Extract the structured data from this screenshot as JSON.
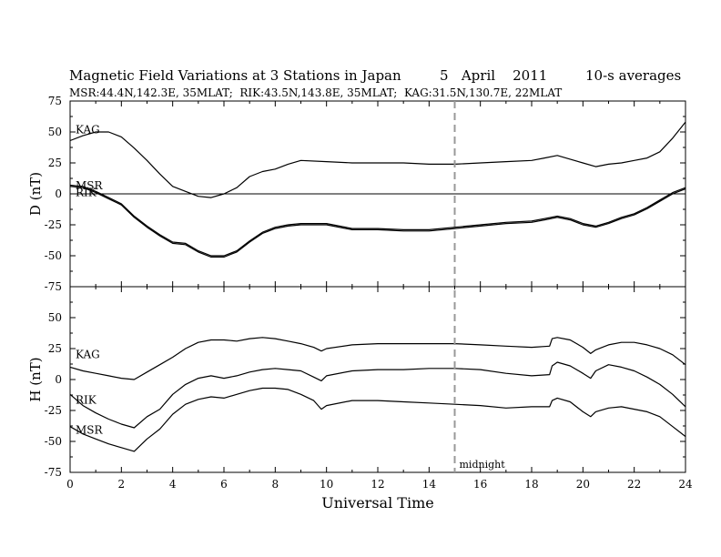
{
  "chart_data": {
    "type": "line",
    "title": "Magnetic Field Variations at 3 Stations in Japan",
    "date": "5   April    2011",
    "averaging": "10-s averages",
    "subtitle": "MSR:44.4N,142.3E, 35MLAT;  RIK:43.5N,143.8E, 35MLAT;  KAG:31.5N,130.7E, 22MLAT",
    "xlabel": "Universal Time",
    "xlim": [
      0,
      24
    ],
    "x_ticks": [
      0,
      2,
      4,
      6,
      8,
      10,
      12,
      14,
      16,
      18,
      20,
      22,
      24
    ],
    "midnight_marker": {
      "x": 15,
      "label": "midnight"
    },
    "panels": [
      {
        "name": "D",
        "ylabel": "D (nT)",
        "ylim": [
          -75,
          75
        ],
        "y_ticks": [
          75,
          50,
          25,
          0,
          -25,
          -50,
          -75
        ],
        "zero_line": true,
        "series": [
          {
            "name": "KAG",
            "x": [
              0,
              0.5,
              1,
              1.5,
              2,
              2.5,
              3,
              3.5,
              4,
              4.5,
              5,
              5.5,
              6,
              6.5,
              7,
              7.5,
              8,
              8.5,
              9,
              10,
              11,
              12,
              13,
              14,
              15,
              16,
              17,
              18,
              18.5,
              19,
              19.5,
              20,
              20.5,
              21,
              21.5,
              22,
              22.5,
              23,
              23.5,
              24
            ],
            "values": [
              43,
              47,
              50,
              50,
              46,
              37,
              27,
              16,
              6,
              2,
              -2,
              -3,
              0,
              5,
              14,
              18,
              20,
              24,
              27,
              26,
              25,
              25,
              25,
              24,
              24,
              25,
              26,
              27,
              29,
              31,
              28,
              25,
              22,
              24,
              25,
              27,
              29,
              34,
              45,
              58
            ]
          },
          {
            "name": "MSR",
            "x": [
              0,
              0.5,
              1,
              1.5,
              2,
              2.5,
              3,
              3.5,
              4,
              4.5,
              5,
              5.5,
              6,
              6.5,
              7,
              7.5,
              8,
              8.5,
              9,
              10,
              11,
              12,
              13,
              14,
              15,
              16,
              17,
              18,
              18.5,
              19,
              19.5,
              20,
              20.5,
              21,
              21.5,
              22,
              22.5,
              23,
              23.5,
              24
            ],
            "values": [
              6,
              5,
              1,
              -4,
              -9,
              -19,
              -27,
              -34,
              -40,
              -41,
              -47,
              -51,
              -51,
              -47,
              -39,
              -32,
              -28,
              -26,
              -25,
              -25,
              -29,
              -29,
              -30,
              -30,
              -28,
              -26,
              -24,
              -23,
              -21,
              -19,
              -21,
              -25,
              -27,
              -24,
              -20,
              -17,
              -12,
              -6,
              0,
              4
            ]
          },
          {
            "name": "RIK",
            "x": [
              0,
              0.5,
              1,
              1.5,
              2,
              2.5,
              3,
              3.5,
              4,
              4.5,
              5,
              5.5,
              6,
              6.5,
              7,
              7.5,
              8,
              8.5,
              9,
              10,
              11,
              12,
              13,
              14,
              15,
              16,
              17,
              18,
              18.5,
              19,
              19.5,
              20,
              20.5,
              21,
              21.5,
              22,
              22.5,
              23,
              23.5,
              24
            ],
            "values": [
              7,
              6,
              2,
              -3,
              -8,
              -18,
              -26,
              -33,
              -39,
              -40,
              -46,
              -50,
              -50,
              -46,
              -38,
              -31,
              -27,
              -25,
              -24,
              -24,
              -28,
              -28,
              -29,
              -29,
              -27,
              -25,
              -23,
              -22,
              -20,
              -18,
              -20,
              -24,
              -26,
              -23,
              -19,
              -16,
              -11,
              -5,
              1,
              5
            ]
          }
        ]
      },
      {
        "name": "H",
        "ylabel": "H (nT)",
        "ylim": [
          -75,
          75
        ],
        "y_ticks": [
          75,
          50,
          25,
          0,
          -25,
          -50,
          -75
        ],
        "zero_line": false,
        "series": [
          {
            "name": "KAG",
            "x": [
              0,
              0.5,
              1,
              1.5,
              2,
              2.5,
              3,
              3.5,
              4,
              4.5,
              5,
              5.5,
              6,
              6.5,
              7,
              7.5,
              8,
              8.5,
              9,
              9.5,
              9.8,
              10,
              11,
              12,
              13,
              14,
              15,
              16,
              17,
              18,
              18.7,
              18.8,
              19,
              19.5,
              20,
              20.3,
              20.5,
              21,
              21.5,
              22,
              22.5,
              23,
              23.5,
              24
            ],
            "values": [
              10,
              7,
              5,
              3,
              1,
              0,
              6,
              12,
              18,
              25,
              30,
              32,
              32,
              31,
              33,
              34,
              33,
              31,
              29,
              26,
              23,
              25,
              28,
              29,
              29,
              29,
              29,
              28,
              27,
              26,
              27,
              33,
              34,
              32,
              26,
              21,
              24,
              28,
              30,
              30,
              28,
              25,
              20,
              12
            ]
          },
          {
            "name": "RIK",
            "x": [
              0,
              0.5,
              1,
              1.5,
              2,
              2.5,
              3,
              3.5,
              4,
              4.5,
              5,
              5.5,
              6,
              6.5,
              7,
              7.5,
              8,
              8.5,
              9,
              9.5,
              9.8,
              10,
              11,
              12,
              13,
              14,
              15,
              16,
              17,
              18,
              18.7,
              18.8,
              19,
              19.5,
              20,
              20.3,
              20.5,
              21,
              21.5,
              22,
              22.5,
              23,
              23.5,
              24
            ],
            "values": [
              -12,
              -21,
              -27,
              -32,
              -36,
              -39,
              -30,
              -24,
              -12,
              -4,
              1,
              3,
              1,
              3,
              6,
              8,
              9,
              8,
              7,
              2,
              -1,
              3,
              7,
              8,
              8,
              9,
              9,
              8,
              5,
              3,
              4,
              11,
              14,
              11,
              5,
              1,
              7,
              12,
              10,
              7,
              2,
              -4,
              -12,
              -22
            ]
          },
          {
            "name": "MSR",
            "x": [
              0,
              0.5,
              1,
              1.5,
              2,
              2.5,
              3,
              3.5,
              4,
              4.5,
              5,
              5.5,
              6,
              6.5,
              7,
              7.5,
              8,
              8.5,
              9,
              9.5,
              9.8,
              10,
              11,
              12,
              13,
              14,
              15,
              16,
              17,
              18,
              18.7,
              18.8,
              19,
              19.5,
              20,
              20.3,
              20.5,
              21,
              21.5,
              22,
              22.5,
              23,
              23.5,
              24
            ],
            "values": [
              -38,
              -44,
              -48,
              -52,
              -55,
              -58,
              -48,
              -40,
              -28,
              -20,
              -16,
              -14,
              -15,
              -12,
              -9,
              -7,
              -7,
              -8,
              -12,
              -17,
              -24,
              -21,
              -17,
              -17,
              -18,
              -19,
              -20,
              -21,
              -23,
              -22,
              -22,
              -17,
              -15,
              -18,
              -26,
              -30,
              -26,
              -23,
              -22,
              -24,
              -26,
              -30,
              -38,
              -46
            ]
          }
        ]
      }
    ]
  }
}
